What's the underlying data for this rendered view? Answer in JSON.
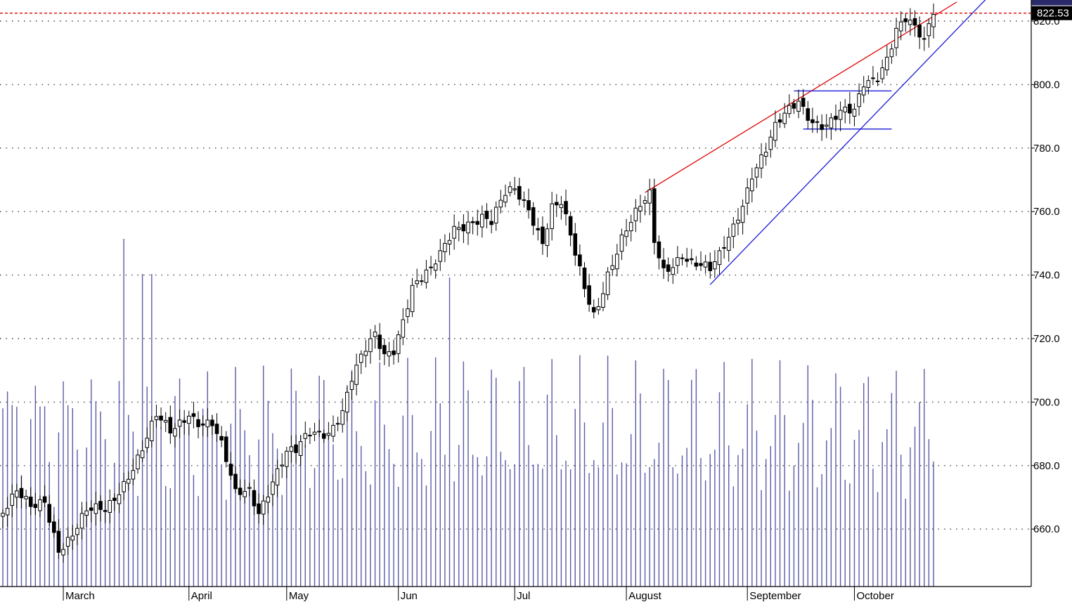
{
  "chart_data": {
    "type": "candlestick",
    "y_axis": {
      "ylim": [
        642,
        826
      ],
      "ticks": [
        660,
        680,
        700,
        720,
        740,
        760,
        780,
        800,
        820
      ],
      "tick_labels": [
        "660.0",
        "680.0",
        "700.0",
        "720.0",
        "740.0",
        "760.0",
        "780.0",
        "800.0",
        "820.0"
      ],
      "grid": "dotted"
    },
    "last_price": {
      "value": 822.5,
      "label": "822.53"
    },
    "x_axis": {
      "months": [
        {
          "label": "March",
          "index": 13
        },
        {
          "label": "April",
          "index": 40
        },
        {
          "label": "May",
          "index": 61
        },
        {
          "label": "Jun",
          "index": 85
        },
        {
          "label": "Jul",
          "index": 110
        },
        {
          "label": "August",
          "index": 134
        },
        {
          "label": "September",
          "index": 160
        },
        {
          "label": "October",
          "index": 183
        }
      ]
    },
    "colors": {
      "candle": "#000000",
      "volume": "#5a5aa6",
      "resistance_line": "#e00000",
      "support_line": "#1a1ad6",
      "last_price_line": "#e00000",
      "grid": "#444444"
    },
    "trendlines": [
      {
        "name": "upper-channel",
        "color": "#e00000",
        "from": {
          "i": 138,
          "v": 766
        },
        "to": {
          "i": 205,
          "v": 826
        }
      },
      {
        "name": "lower-channel",
        "color": "#1a1ad6",
        "from": {
          "i": 152,
          "v": 737
        },
        "to": {
          "i": 212,
          "v": 828
        }
      },
      {
        "name": "range-top",
        "color": "#1a1ad6",
        "from": {
          "i": 170,
          "v": 798
        },
        "to": {
          "i": 191,
          "v": 798
        }
      },
      {
        "name": "range-bottom",
        "color": "#1a1ad6",
        "from": {
          "i": 172,
          "v": 786
        },
        "to": {
          "i": 191,
          "v": 786
        }
      }
    ],
    "anchors": [
      [
        0,
        665
      ],
      [
        3,
        670
      ],
      [
        6,
        666
      ],
      [
        9,
        670
      ],
      [
        12,
        655
      ],
      [
        15,
        658
      ],
      [
        18,
        664
      ],
      [
        22,
        666
      ],
      [
        26,
        676
      ],
      [
        30,
        685
      ],
      [
        33,
        694
      ],
      [
        36,
        690
      ],
      [
        38,
        694
      ],
      [
        40,
        698
      ],
      [
        42,
        695
      ],
      [
        45,
        693
      ],
      [
        47,
        685
      ],
      [
        50,
        670
      ],
      [
        53,
        673
      ],
      [
        55,
        667
      ],
      [
        58,
        676
      ],
      [
        61,
        683
      ],
      [
        63,
        683
      ],
      [
        66,
        690
      ],
      [
        70,
        692
      ],
      [
        73,
        698
      ],
      [
        75,
        707
      ],
      [
        78,
        715
      ],
      [
        80,
        720
      ],
      [
        82,
        715
      ],
      [
        84,
        718
      ],
      [
        88,
        737
      ],
      [
        92,
        740
      ],
      [
        94,
        745
      ],
      [
        97,
        755
      ],
      [
        100,
        758
      ],
      [
        103,
        759
      ],
      [
        105,
        756
      ],
      [
        108,
        764
      ],
      [
        110,
        766
      ],
      [
        113,
        762
      ],
      [
        116,
        752
      ],
      [
        118,
        762
      ],
      [
        120,
        762
      ],
      [
        123,
        745
      ],
      [
        125,
        735
      ],
      [
        127,
        728
      ],
      [
        128,
        732
      ],
      [
        130,
        742
      ],
      [
        133,
        752
      ],
      [
        136,
        758
      ],
      [
        138,
        762
      ],
      [
        139,
        764
      ],
      [
        140,
        750
      ],
      [
        142,
        742
      ],
      [
        144,
        745
      ],
      [
        146,
        748
      ],
      [
        148,
        744
      ],
      [
        150,
        742
      ],
      [
        152,
        740
      ],
      [
        154,
        745
      ],
      [
        157,
        756
      ],
      [
        159,
        764
      ],
      [
        161,
        773
      ],
      [
        164,
        779
      ],
      [
        166,
        785
      ],
      [
        169,
        791
      ],
      [
        171,
        795
      ],
      [
        174,
        790
      ],
      [
        177,
        788
      ],
      [
        180,
        790
      ],
      [
        183,
        790
      ],
      [
        185,
        800
      ],
      [
        188,
        804
      ],
      [
        190,
        810
      ],
      [
        192,
        818
      ],
      [
        194,
        820
      ],
      [
        196,
        816
      ],
      [
        198,
        812
      ],
      [
        200,
        823
      ]
    ],
    "series_length": 201
  }
}
